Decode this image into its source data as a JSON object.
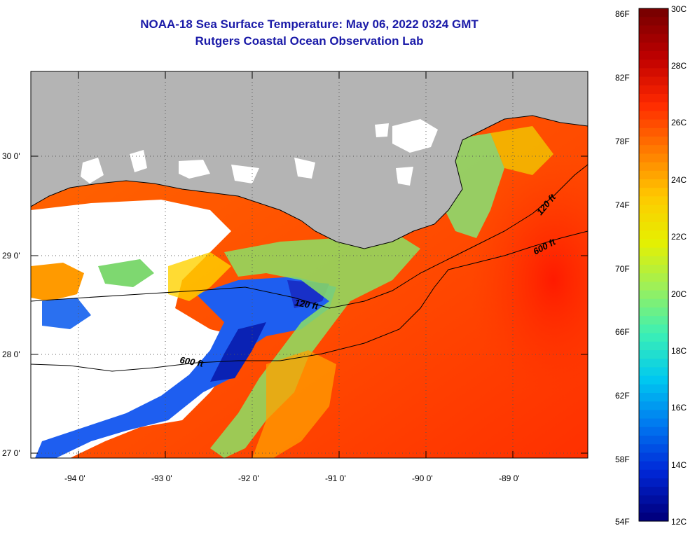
{
  "title": "NOAA-18 Sea Surface Temperature:  May 06, 2022 0324 GMT",
  "subtitle": "Rutgers Coastal Ocean Observation Lab",
  "map": {
    "lon_labels": [
      "-94 0'",
      "-93 0'",
      "-92 0'",
      "-91 0'",
      "-90 0'",
      "-89 0'"
    ],
    "lat_labels": [
      "30 0'",
      "29 0'",
      "28 0'",
      "27 0'"
    ],
    "contour_labels": [
      "120 ft",
      "600 ft",
      "120 ft",
      "600 ft"
    ]
  },
  "colorbar": {
    "fahrenheit_labels": [
      "86F",
      "82F",
      "78F",
      "74F",
      "70F",
      "66F",
      "62F",
      "58F",
      "54F"
    ],
    "celsius_labels": [
      "30C",
      "28C",
      "26C",
      "24C",
      "22C",
      "20C",
      "18C",
      "16C",
      "14C",
      "12C"
    ],
    "colors": [
      "#7a0000",
      "#c00000",
      "#ff2a00",
      "#ff7a00",
      "#ffc800",
      "#e6f000",
      "#9cf05a",
      "#3cf0b4",
      "#00c8f0",
      "#0078f0",
      "#0028d8",
      "#000080"
    ]
  },
  "colors": {
    "land": "#b4b4b4",
    "cloud": "#ffffff",
    "title_text": "#1a1aa8"
  }
}
